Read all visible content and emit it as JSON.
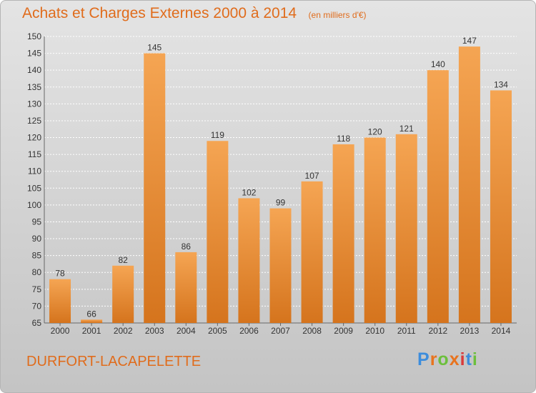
{
  "header": {
    "title": "Achats et Charges Externes 2000 à 2014",
    "unit": "(en milliers d'€)"
  },
  "footer": {
    "commune": "DURFORT-LACAPELETTE",
    "brand_letters": [
      "P",
      "r",
      "o",
      "x",
      "i",
      "t",
      "i"
    ],
    "brand_colors": [
      "#3d8ddc",
      "#e8731e",
      "#6cbf3c",
      "#e8731e",
      "#d93a3a",
      "#3d8ddc",
      "#6cbf3c"
    ]
  },
  "colors": {
    "bar_light": "#f5a553",
    "bar_dark": "#d5741d",
    "text": "#333333",
    "accent": "#e06c1c"
  },
  "chart_data": {
    "type": "bar",
    "title": "Achats et Charges Externes 2000 à 2014",
    "subtitle": "(en milliers d'€)",
    "categories": [
      "2000",
      "2001",
      "2002",
      "2003",
      "2004",
      "2005",
      "2006",
      "2007",
      "2008",
      "2009",
      "2010",
      "2011",
      "2012",
      "2013",
      "2014"
    ],
    "values": [
      78,
      66,
      82,
      145,
      86,
      119,
      102,
      99,
      107,
      118,
      120,
      121,
      140,
      147,
      134
    ],
    "ylim": [
      65,
      150
    ],
    "yticks": [
      65,
      70,
      75,
      80,
      85,
      90,
      95,
      100,
      105,
      110,
      115,
      120,
      125,
      130,
      135,
      140,
      145,
      150
    ],
    "grid": true,
    "data_labels": true
  }
}
